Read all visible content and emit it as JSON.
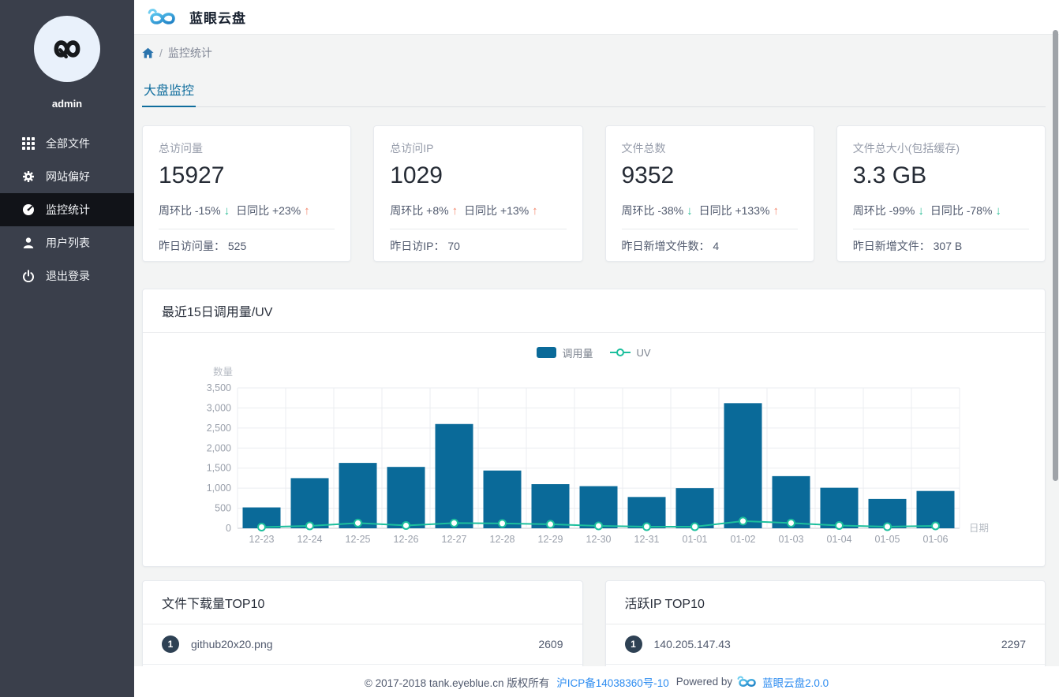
{
  "app": {
    "title": "蓝眼云盘",
    "username": "admin"
  },
  "sidebar": {
    "items": [
      {
        "label": "全部文件",
        "icon": "grid"
      },
      {
        "label": "网站偏好",
        "icon": "gear"
      },
      {
        "label": "监控统计",
        "icon": "dashboard",
        "active": true
      },
      {
        "label": "用户列表",
        "icon": "user"
      },
      {
        "label": "退出登录",
        "icon": "power"
      }
    ]
  },
  "breadcrumb": {
    "separator": "/",
    "current": "监控统计"
  },
  "tabs": [
    {
      "label": "大盘监控",
      "active": true
    }
  ],
  "stats": {
    "cards": [
      {
        "label": "总访问量",
        "value": "15927",
        "week_text": "周环比 -15%",
        "week_arrow": "↓",
        "week_dir": "down",
        "day_text": "日同比 +23%",
        "day_arrow": "↑",
        "day_dir": "up",
        "foot_label": "昨日访问量：",
        "foot_value": "525"
      },
      {
        "label": "总访问IP",
        "value": "1029",
        "week_text": "周环比 +8%",
        "week_arrow": "↑",
        "week_dir": "up",
        "day_text": "日同比 +13%",
        "day_arrow": "↑",
        "day_dir": "up",
        "foot_label": "昨日访IP：",
        "foot_value": "70"
      },
      {
        "label": "文件总数",
        "value": "9352",
        "week_text": "周环比 -38%",
        "week_arrow": "↓",
        "week_dir": "down",
        "day_text": "日同比 +133%",
        "day_arrow": "↑",
        "day_dir": "up",
        "foot_label": "昨日新增文件数：",
        "foot_value": "4"
      },
      {
        "label": "文件总大小(包括缓存)",
        "value": "3.3 GB",
        "week_text": "周环比 -99%",
        "week_arrow": "↓",
        "week_dir": "down",
        "day_text": "日同比 -78%",
        "day_arrow": "↓",
        "day_dir": "down",
        "foot_label": "昨日新增文件：",
        "foot_value": "307 B"
      }
    ]
  },
  "chart_card": {
    "title": "最近15日调用量/UV"
  },
  "chart_data": {
    "type": "bar",
    "categories": [
      "12-23",
      "12-24",
      "12-25",
      "12-26",
      "12-27",
      "12-28",
      "12-29",
      "12-30",
      "12-31",
      "01-01",
      "01-02",
      "01-03",
      "01-04",
      "01-05",
      "01-06"
    ],
    "series": [
      {
        "name": "调用量",
        "type": "bar",
        "color": "#0a6a99",
        "values": [
          520,
          1250,
          1630,
          1530,
          2600,
          1440,
          1100,
          1050,
          780,
          1000,
          3120,
          1300,
          1010,
          730,
          930
        ]
      },
      {
        "name": "UV",
        "type": "line",
        "color": "#1cbf9d",
        "values": [
          30,
          60,
          130,
          70,
          130,
          120,
          100,
          60,
          40,
          40,
          180,
          130,
          70,
          40,
          60
        ]
      }
    ],
    "xlabel": "日期",
    "ylabel": "数量",
    "ylim": [
      0,
      3500
    ],
    "ytick_step": 500,
    "grid": true,
    "legend_position": "top-center"
  },
  "lists": [
    {
      "title": "文件下载量TOP10",
      "rows": [
        {
          "rank": "1",
          "name": "github20x20.png",
          "value": "2609"
        }
      ]
    },
    {
      "title": "活跃IP TOP10",
      "rows": [
        {
          "rank": "1",
          "name": "140.205.147.43",
          "value": "2297"
        }
      ]
    }
  ],
  "footer": {
    "copyright": "© 2017-2018 tank.eyeblue.cn 版权所有",
    "icp": "沪ICP备14038360号-10",
    "powered_by": "Powered by",
    "brand": "蓝眼云盘2.0.0"
  },
  "colors": {
    "bar": "#0a6a99",
    "line": "#1cbf9d",
    "up": "#f58a70",
    "down": "#2bbd96",
    "link": "#2d8cf0",
    "sidebar_bg": "#3a3f4b",
    "sidebar_active": "#111318",
    "tab": "#0f6d9d",
    "badge": "#2e4154",
    "page_bg": "#f3f4f4"
  }
}
